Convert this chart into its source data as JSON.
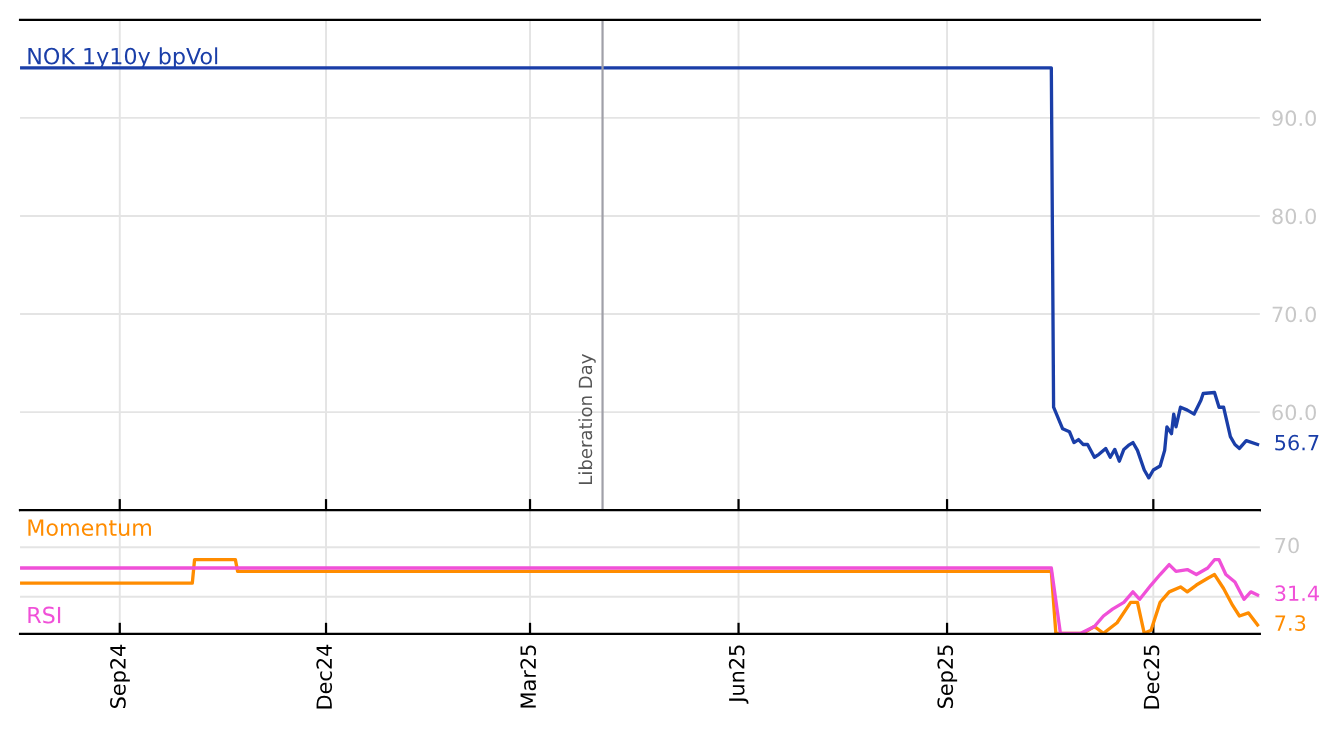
{
  "chart_data": [
    {
      "type": "line",
      "xlim": [
        "2024-07-19",
        "2026-01-17"
      ],
      "ylim": [
        50,
        100
      ],
      "xticks": [
        {
          "value": "2024-09-01",
          "label": null
        },
        {
          "value": "2024-12-01",
          "label": null
        },
        {
          "value": "2025-03-01",
          "label": null
        },
        {
          "value": "2025-06-01",
          "label": null
        },
        {
          "value": "2025-09-01",
          "label": null
        },
        {
          "value": "2025-12-01",
          "label": null
        }
      ],
      "yticks": [
        {
          "value": 60,
          "label": "60.0"
        },
        {
          "value": 70,
          "label": "70.0"
        },
        {
          "value": 80,
          "label": "80.0"
        },
        {
          "value": 90,
          "label": "90.0"
        }
      ],
      "tick_labels": "y",
      "grid": true,
      "ref_lines": [
        {
          "axis": "x",
          "value": "2025-04-02",
          "label": "Liberation Day",
          "color": "#a0a0a8"
        }
      ],
      "series": [
        {
          "name": "NOK 1y10y bpVol",
          "color": "#1a3ea8",
          "x": [
            "2024-07-19",
            "2025-10-17",
            "2025-10-18",
            "2025-10-22",
            "2025-10-25",
            "2025-10-27",
            "2025-10-29",
            "2025-10-31",
            "2025-11-02",
            "2025-11-05",
            "2025-11-07",
            "2025-11-10",
            "2025-11-12",
            "2025-11-14",
            "2025-11-16",
            "2025-11-18",
            "2025-11-20",
            "2025-11-22",
            "2025-11-24",
            "2025-11-27",
            "2025-11-29",
            "2025-12-01",
            "2025-12-04",
            "2025-12-06",
            "2025-12-07",
            "2025-12-09",
            "2025-12-10",
            "2025-12-11",
            "2025-12-13",
            "2025-12-16",
            "2025-12-19",
            "2025-12-22",
            "2025-12-23",
            "2025-12-28",
            "2025-12-30",
            "2026-01-01",
            "2026-01-04",
            "2026-01-06",
            "2026-01-08",
            "2026-01-11",
            "2026-01-16"
          ],
          "values": [
            95.1,
            95.1,
            60.5,
            58.3,
            58.0,
            56.9,
            57.2,
            56.7,
            56.7,
            55.4,
            55.7,
            56.3,
            55.4,
            56.2,
            55.0,
            56.2,
            56.6,
            56.9,
            56.1,
            54.1,
            53.3,
            54.1,
            54.5,
            56.1,
            58.5,
            57.8,
            59.8,
            58.5,
            60.5,
            60.2,
            59.8,
            61.2,
            61.9,
            62.0,
            60.5,
            60.5,
            57.5,
            56.7,
            56.3,
            57.1,
            56.7
          ],
          "value_labels": [
            null,
            null,
            null,
            null,
            null,
            null,
            null,
            null,
            null,
            null,
            null,
            null,
            null,
            null,
            null,
            null,
            null,
            null,
            null,
            null,
            null,
            null,
            null,
            null,
            null,
            null,
            null,
            null,
            null,
            null,
            null,
            null,
            null,
            null,
            null,
            null,
            null,
            null,
            null,
            null,
            "56.7"
          ]
        }
      ]
    },
    {
      "type": "line",
      "xlim": [
        "2024-07-19",
        "2026-01-17"
      ],
      "ylim": [
        0,
        100
      ],
      "xticks": [
        {
          "value": "2024-09-01",
          "label": "Sep24"
        },
        {
          "value": "2024-12-01",
          "label": "Dec24"
        },
        {
          "value": "2025-03-01",
          "label": "Mar25"
        },
        {
          "value": "2025-06-01",
          "label": "Jun25"
        },
        {
          "value": "2025-09-01",
          "label": "Sep25"
        },
        {
          "value": "2025-12-01",
          "label": "Dec25"
        }
      ],
      "grid": "x",
      "ref_lines": [
        {
          "axis": "y",
          "value": 30,
          "label": null,
          "color": "#e4e4e4"
        },
        {
          "axis": "y",
          "value": 70,
          "label": "70",
          "color": "#e4e4e4"
        }
      ],
      "series": [
        {
          "name": "Momentum",
          "color": "#ff8c00",
          "x": [
            "2024-07-19",
            "2024-10-03",
            "2024-10-04",
            "2024-10-22",
            "2024-10-23",
            "2025-10-17",
            "2025-10-19",
            "2025-10-31",
            "2025-11-05",
            "2025-11-09",
            "2025-11-15",
            "2025-11-21",
            "2025-11-24",
            "2025-11-27",
            "2025-11-30",
            "2025-12-04",
            "2025-12-08",
            "2025-12-13",
            "2025-12-16",
            "2025-12-20",
            "2025-12-25",
            "2025-12-28",
            "2026-01-01",
            "2026-01-05",
            "2026-01-08",
            "2026-01-12",
            "2026-01-16"
          ],
          "values": [
            41,
            41,
            60,
            60,
            50.5,
            50.5,
            0.5,
            0.5,
            6,
            0.5,
            9,
            25.5,
            25.5,
            0.5,
            3,
            25.5,
            34,
            38,
            34,
            39.5,
            45,
            48,
            36.7,
            23,
            14.5,
            17,
            7.3
          ],
          "value_labels": [
            null,
            null,
            null,
            null,
            null,
            null,
            null,
            null,
            null,
            null,
            null,
            null,
            null,
            null,
            null,
            null,
            null,
            null,
            null,
            null,
            null,
            null,
            null,
            null,
            null,
            null,
            "7.3"
          ]
        },
        {
          "name": "RSI",
          "color": "#f050d8",
          "x": [
            "2024-07-19",
            "2025-10-17",
            "2025-10-21",
            "2025-10-30",
            "2025-11-05",
            "2025-11-09",
            "2025-11-13",
            "2025-11-18",
            "2025-11-22",
            "2025-11-25",
            "2025-11-30",
            "2025-12-04",
            "2025-12-08",
            "2025-12-11",
            "2025-12-16",
            "2025-12-20",
            "2025-12-25",
            "2025-12-28",
            "2025-12-30",
            "2026-01-02",
            "2026-01-06",
            "2026-01-10",
            "2026-01-13",
            "2026-01-16"
          ],
          "values": [
            53.3,
            53.3,
            0.5,
            0.5,
            6,
            14.5,
            20,
            25.5,
            34,
            28,
            39.5,
            48,
            56,
            50.5,
            52,
            48,
            53.3,
            60,
            60,
            48,
            42,
            28,
            34,
            31.4
          ],
          "value_labels": [
            null,
            null,
            null,
            null,
            null,
            null,
            null,
            null,
            null,
            null,
            null,
            null,
            null,
            null,
            null,
            null,
            null,
            null,
            null,
            null,
            null,
            null,
            null,
            "31.4"
          ]
        }
      ]
    }
  ]
}
